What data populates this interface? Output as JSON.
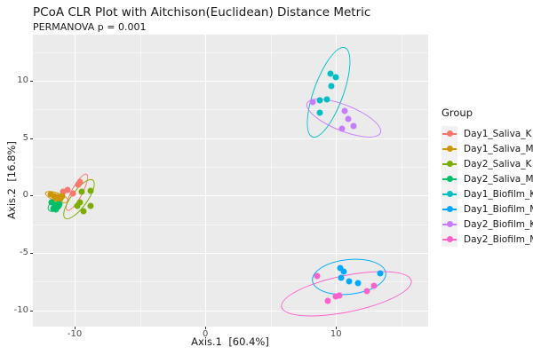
{
  "chart_data": {
    "type": "scatter",
    "title": "PCoA CLR Plot with Aitchison(Euclidean) Distance Metric",
    "subtitle": "PERMANOVA p = 0.001",
    "xlabel": "Axis.1  [60.4%]",
    "ylabel": "Axis.2  [16.8%]",
    "xlim": [
      -13.2,
      17.05
    ],
    "ylim": [
      -11.43,
      14.03
    ],
    "x_ticks": [
      -10,
      0,
      10
    ],
    "y_ticks": [
      -10,
      -5,
      0,
      5,
      10
    ],
    "x_minor": [
      -5,
      5,
      15
    ],
    "y_minor": [
      -7.5,
      -2.5,
      2.5,
      7.5,
      12.5
    ],
    "grid": true,
    "legend_position": "right",
    "legend_title": "Group",
    "panel_bg": "#EBEBEB",
    "grid_color": "#FFFFFF",
    "axis_text_color": "#4D4D4D",
    "text_color": "#1A1A1A",
    "series": [
      {
        "name": "Day1_Saliva_K",
        "color": "#F8766D",
        "points": [
          [
            -9.6,
            1.15
          ],
          [
            -9.73,
            0.95
          ],
          [
            -10.17,
            0.16
          ],
          [
            -10.55,
            0.48
          ],
          [
            -10.9,
            0.3
          ]
        ],
        "ellipse": {
          "cx": -9.84,
          "cy": 0.33,
          "rx": 1.61,
          "ry": 0.5,
          "angle": -62
        }
      },
      {
        "name": "Day1_Saliva_M",
        "color": "#CD9600",
        "points": [
          [
            -11.86,
            0.1
          ],
          [
            -11.56,
            -0.05
          ],
          [
            -11.29,
            -0.12
          ],
          [
            -11.09,
            -0.28
          ],
          [
            -11.43,
            -0.3
          ],
          [
            -10.95,
            -0.05
          ]
        ],
        "ellipse": {
          "cx": -11.34,
          "cy": -0.13,
          "rx": 0.95,
          "ry": 0.39,
          "angle": 20
        }
      },
      {
        "name": "Day2_Saliva_K",
        "color": "#7CAE00",
        "points": [
          [
            -9.46,
            0.3
          ],
          [
            -8.78,
            0.42
          ],
          [
            -9.57,
            -0.6
          ],
          [
            -8.8,
            -0.88
          ],
          [
            -9.82,
            -0.88
          ],
          [
            -9.35,
            -1.39
          ]
        ],
        "ellipse": {
          "cx": -9.64,
          "cy": -0.36,
          "rx": 1.83,
          "ry": 0.74,
          "angle": -54
        }
      },
      {
        "name": "Day2_Saliva_M",
        "color": "#00BE67",
        "points": [
          [
            -11.77,
            -0.58
          ],
          [
            -11.22,
            -0.73
          ],
          [
            -11.5,
            -0.81
          ],
          [
            -11.29,
            -0.96
          ],
          [
            -11.63,
            -1.12
          ],
          [
            -11.43,
            -1.19
          ]
        ],
        "ellipse": {
          "cx": -11.47,
          "cy": -0.87,
          "rx": 0.61,
          "ry": 0.46,
          "angle": -30
        }
      },
      {
        "name": "Day1_Biofilm_K",
        "color": "#00BFC4",
        "points": [
          [
            9.57,
            10.6
          ],
          [
            10.01,
            10.34
          ],
          [
            9.67,
            9.57
          ],
          [
            9.33,
            8.41
          ],
          [
            8.77,
            8.28
          ],
          [
            8.77,
            7.24
          ]
        ],
        "ellipse": {
          "cx": 9.45,
          "cy": 8.98,
          "rx": 3.67,
          "ry": 1.32,
          "angle": -70
        }
      },
      {
        "name": "Day1_Biofilm_M",
        "color": "#00A9FF",
        "points": [
          [
            10.31,
            -6.3
          ],
          [
            10.62,
            -6.63
          ],
          [
            10.4,
            -7.2
          ],
          [
            11.03,
            -7.46
          ],
          [
            11.71,
            -7.66
          ],
          [
            13.38,
            -6.81
          ]
        ],
        "ellipse": {
          "cx": 11.01,
          "cy": -7.1,
          "rx": 2.85,
          "ry": 1.55,
          "angle": -6
        }
      },
      {
        "name": "Day2_Biofilm_K",
        "color": "#C77CFF",
        "points": [
          [
            8.21,
            8.15
          ],
          [
            10.69,
            7.38
          ],
          [
            10.92,
            6.68
          ],
          [
            11.37,
            6.08
          ],
          [
            10.47,
            5.83
          ]
        ],
        "ellipse": {
          "cx": 10.62,
          "cy": 6.73,
          "rx": 3.06,
          "ry": 1.16,
          "angle": 22
        }
      },
      {
        "name": "Day2_Biofilm_M",
        "color": "#FF61CC",
        "points": [
          [
            8.55,
            -7.0
          ],
          [
            10.24,
            -8.7
          ],
          [
            10.01,
            -8.8
          ],
          [
            9.4,
            -9.21
          ],
          [
            12.9,
            -7.89
          ],
          [
            12.36,
            -8.31
          ]
        ],
        "ellipse": {
          "cx": 10.81,
          "cy": -8.57,
          "rx": 5.1,
          "ry": 1.63,
          "angle": -11.5
        }
      }
    ]
  }
}
